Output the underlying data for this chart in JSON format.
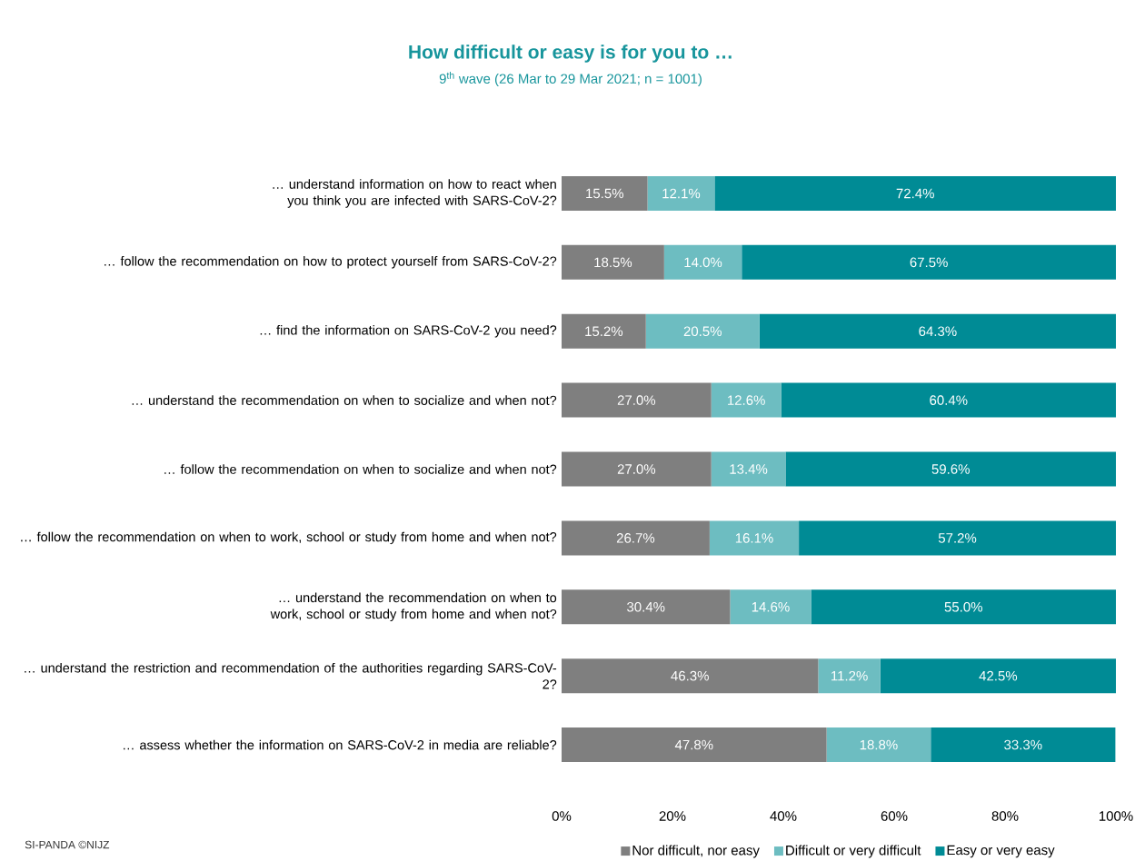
{
  "chart_data": {
    "type": "bar",
    "orientation": "horizontal",
    "stacked": true,
    "title": "How difficult or easy is for you to …",
    "subtitle": "9$^{th}$ wave (26 Mar to 29 Mar 2021; n = 1001)",
    "categories": [
      "… understand information on how to react when you think you are infected with SARS-CoV-2?",
      "… follow the recommendation on how to protect yourself from SARS-CoV-2?",
      "… find the information on SARS-CoV-2 you need?",
      "… understand the recommendation on when to socialize and when not?",
      "… follow the recommendation on when to socialize and when not?",
      "… follow the recommendation on when to work, school or study from home and when not?",
      "… understand the recommendation on when to work, school or study from home and when not?",
      "… understand the restriction and recommendation of the authorities regarding SARS-CoV-2?",
      "… assess whether the information on SARS-CoV-2 in media are reliable?"
    ],
    "series": [
      {
        "name": "Nor difficult, nor easy",
        "color": "#7f7f7f",
        "values": [
          15.5,
          18.5,
          15.2,
          27.0,
          27.0,
          26.7,
          30.4,
          46.3,
          47.8
        ],
        "value_labels": [
          "15.5%",
          "18.5%",
          "15.2%",
          "27.0%",
          "27.0%",
          "26.7%",
          "30.4%",
          "46.3%",
          "47.8%"
        ]
      },
      {
        "name": "Difficult or very difficult",
        "color": "#6dbdc1",
        "values": [
          12.1,
          14.0,
          20.5,
          12.6,
          13.4,
          16.1,
          14.6,
          11.2,
          18.8
        ],
        "value_labels": [
          "12.1%",
          "14.0%",
          "20.5%",
          "12.6%",
          "13.4%",
          "16.1%",
          "14.6%",
          "11.2%",
          "18.8%"
        ]
      },
      {
        "name": "Easy or very easy",
        "color": "#008b95",
        "values": [
          72.4,
          67.5,
          64.3,
          60.4,
          59.6,
          57.2,
          55.0,
          42.5,
          33.3
        ],
        "value_labels": [
          "72.4%",
          "67.5%",
          "64.3%",
          "60.4%",
          "59.6%",
          "57.2%",
          "55.0%",
          "42.5%",
          "33.3%"
        ]
      }
    ],
    "xlim": [
      0,
      100
    ],
    "xticks": [
      {
        "value": 0,
        "label": "0%"
      },
      {
        "value": 20,
        "label": "20%"
      },
      {
        "value": 40,
        "label": "40%"
      },
      {
        "value": 60,
        "label": "60%"
      },
      {
        "value": 80,
        "label": "80%"
      },
      {
        "value": 100,
        "label": "100%"
      }
    ],
    "grid": false,
    "legend": "bottom",
    "annotations": [
      "SI-PANDA ©NIJZ"
    ]
  }
}
